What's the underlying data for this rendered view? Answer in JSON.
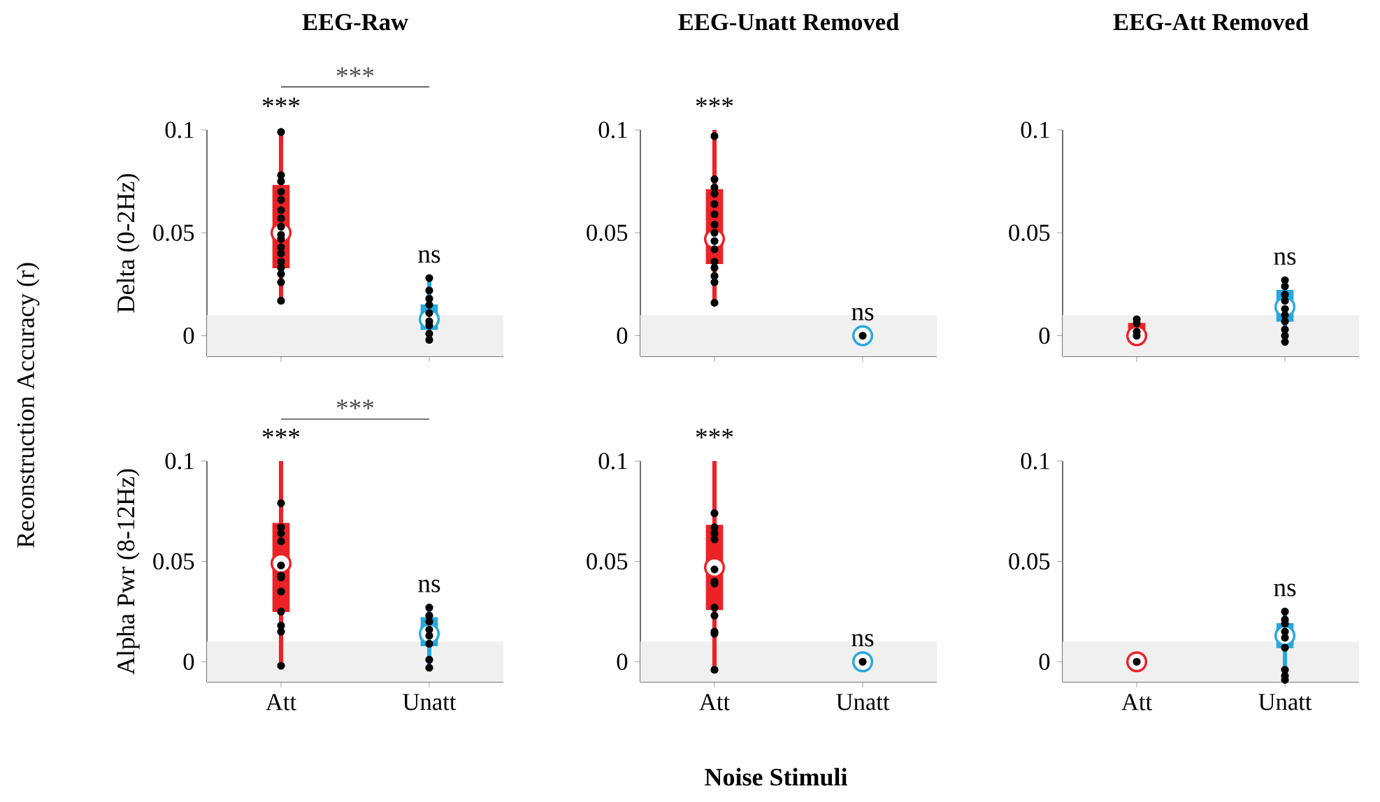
{
  "chart_data": [
    {
      "type": "box",
      "title": "EEG-Raw",
      "ylabel": "Delta (0-2Hz)",
      "categories": [
        "Att",
        "Unatt"
      ],
      "colors": [
        "#ec2227",
        "#27a8e0"
      ],
      "marker": "circle",
      "tick_labels": "y",
      "ylim": [
        -0.01,
        0.1
      ],
      "yticks": [
        0,
        0.05,
        0.1
      ],
      "bands": [
        {
          "axis": "y",
          "from": -0.01,
          "to": 0.01,
          "color": "#f0f0f0"
        }
      ],
      "boxes": [
        {
          "low": 0.017,
          "q1": 0.033,
          "median": 0.05,
          "q3": 0.073,
          "high": 0.099
        },
        {
          "low": -0.002,
          "q1": 0.003,
          "median": 0.008,
          "q3": 0.015,
          "high": 0.028
        }
      ],
      "series": [
        {
          "type": "scatter",
          "color": "#000000",
          "x": [
            "Att",
            "Att",
            "Att",
            "Att",
            "Att",
            "Att",
            "Att",
            "Att",
            "Att",
            "Att",
            "Att",
            "Att",
            "Att",
            "Att",
            "Att",
            "Att",
            "Att",
            "Unatt",
            "Unatt",
            "Unatt",
            "Unatt",
            "Unatt",
            "Unatt",
            "Unatt",
            "Unatt",
            "Unatt"
          ],
          "values": [
            0.099,
            0.078,
            0.075,
            0.07,
            0.066,
            0.061,
            0.057,
            0.053,
            0.049,
            0.047,
            0.043,
            0.04,
            0.036,
            0.033,
            0.03,
            0.026,
            0.017,
            0.028,
            0.022,
            0.018,
            0.015,
            0.011,
            0.007,
            0.005,
            0.001,
            -0.002
          ]
        }
      ],
      "annotations": [
        {
          "text": "***",
          "x": "Att",
          "y": 0.1
        },
        {
          "text": "ns",
          "x": "Unatt",
          "y": 0.028
        },
        "***"
      ]
    },
    {
      "type": "box",
      "title": "EEG-Unatt Removed",
      "categories": [
        "Att",
        "Unatt"
      ],
      "colors": [
        "#ec2227",
        "#27a8e0"
      ],
      "marker": "circle",
      "tick_labels": "y",
      "ylim": [
        -0.01,
        0.1
      ],
      "yticks": [
        0,
        0.05,
        0.1
      ],
      "bands": [
        {
          "axis": "y",
          "from": -0.01,
          "to": 0.01,
          "color": "#f0f0f0"
        }
      ],
      "boxes": [
        {
          "low": 0.016,
          "q1": 0.035,
          "median": 0.047,
          "q3": 0.071,
          "high": 0.1
        },
        {
          "low": 0,
          "q1": 0,
          "median": 0,
          "q3": 0,
          "high": 0
        }
      ],
      "series": [
        {
          "type": "scatter",
          "color": "#000000",
          "x": [
            "Att",
            "Att",
            "Att",
            "Att",
            "Att",
            "Att",
            "Att",
            "Att",
            "Att",
            "Att",
            "Att",
            "Att",
            "Att",
            "Att",
            "Att",
            "Unatt"
          ],
          "values": [
            0.097,
            0.076,
            0.072,
            0.069,
            0.064,
            0.059,
            0.054,
            0.05,
            0.046,
            0.042,
            0.036,
            0.033,
            0.029,
            0.026,
            0.016,
            0
          ]
        }
      ],
      "annotations": [
        {
          "text": "***",
          "x": "Att",
          "y": 0.1
        },
        {
          "text": "ns",
          "x": "Unatt",
          "y": 0
        }
      ]
    },
    {
      "type": "box",
      "title": "EEG-Att Removed",
      "categories": [
        "Att",
        "Unatt"
      ],
      "colors": [
        "#ec2227",
        "#27a8e0"
      ],
      "marker": "circle",
      "tick_labels": "y",
      "ylim": [
        -0.01,
        0.1
      ],
      "yticks": [
        0,
        0.05,
        0.1
      ],
      "bands": [
        {
          "axis": "y",
          "from": -0.01,
          "to": 0.01,
          "color": "#f0f0f0"
        }
      ],
      "boxes": [
        {
          "low": 0,
          "q1": 0,
          "median": 0,
          "q3": 0.006,
          "high": 0.008
        },
        {
          "low": -0.003,
          "q1": 0.007,
          "median": 0.014,
          "q3": 0.022,
          "high": 0.027
        }
      ],
      "series": [
        {
          "type": "scatter",
          "color": "#000000",
          "x": [
            "Att",
            "Att",
            "Att",
            "Att",
            "Unatt",
            "Unatt",
            "Unatt",
            "Unatt",
            "Unatt",
            "Unatt",
            "Unatt",
            "Unatt",
            "Unatt",
            "Unatt"
          ],
          "values": [
            0.008,
            0.006,
            0.002,
            0,
            0.027,
            0.024,
            0.02,
            0.017,
            0.013,
            0.01,
            0.007,
            0.003,
            0,
            -0.003
          ]
        }
      ],
      "annotations": [
        {
          "text": "ns",
          "x": "Unatt",
          "y": 0.027
        }
      ]
    },
    {
      "type": "box",
      "ylabel": "Alpha Pwr (8-12Hz)",
      "categories": [
        "Att",
        "Unatt"
      ],
      "colors": [
        "#ec2227",
        "#27a8e0"
      ],
      "marker": "circle",
      "ylim": [
        -0.01,
        0.1
      ],
      "yticks": [
        0,
        0.05,
        0.1
      ],
      "bands": [
        {
          "axis": "y",
          "from": -0.01,
          "to": 0.01,
          "color": "#f0f0f0"
        }
      ],
      "boxes": [
        {
          "low": -0.002,
          "q1": 0.025,
          "median": 0.049,
          "q3": 0.069,
          "high": 0.1
        },
        {
          "low": -0.003,
          "q1": 0.008,
          "median": 0.014,
          "q3": 0.022,
          "high": 0.027
        }
      ],
      "series": [
        {
          "type": "scatter",
          "color": "#000000",
          "x": [
            "Att",
            "Att",
            "Att",
            "Att",
            "Att",
            "Att",
            "Att",
            "Att",
            "Att",
            "Att",
            "Att",
            "Att",
            "Unatt",
            "Unatt",
            "Unatt",
            "Unatt",
            "Unatt",
            "Unatt",
            "Unatt",
            "Unatt"
          ],
          "values": [
            0.079,
            0.067,
            0.064,
            0.06,
            0.048,
            0.043,
            0.042,
            0.035,
            0.025,
            0.018,
            0.015,
            -0.002,
            0.027,
            0.023,
            0.02,
            0.016,
            0.013,
            0.009,
            0.001,
            -0.003
          ]
        }
      ],
      "annotations": [
        {
          "text": "***",
          "x": "Att",
          "y": 0.1
        },
        {
          "text": "ns",
          "x": "Unatt",
          "y": 0.027
        },
        "***"
      ]
    },
    {
      "type": "box",
      "categories": [
        "Att",
        "Unatt"
      ],
      "colors": [
        "#ec2227",
        "#27a8e0"
      ],
      "marker": "circle",
      "ylim": [
        -0.01,
        0.1
      ],
      "yticks": [
        0,
        0.05,
        0.1
      ],
      "bands": [
        {
          "axis": "y",
          "from": -0.01,
          "to": 0.01,
          "color": "#f0f0f0"
        }
      ],
      "boxes": [
        {
          "low": -0.004,
          "q1": 0.026,
          "median": 0.047,
          "q3": 0.068,
          "high": 0.1
        },
        {
          "low": 0,
          "q1": 0,
          "median": 0,
          "q3": 0,
          "high": 0
        }
      ],
      "series": [
        {
          "type": "scatter",
          "color": "#000000",
          "x": [
            "Att",
            "Att",
            "Att",
            "Att",
            "Att",
            "Att",
            "Att",
            "Att",
            "Att",
            "Att",
            "Att",
            "Att",
            "Unatt"
          ],
          "values": [
            0.074,
            0.067,
            0.064,
            0.061,
            0.046,
            0.04,
            0.039,
            0.027,
            0.023,
            0.015,
            0.014,
            -0.004,
            0
          ]
        }
      ],
      "annotations": [
        {
          "text": "***",
          "x": "Att",
          "y": 0.1
        },
        {
          "text": "ns",
          "x": "Unatt",
          "y": 0
        }
      ]
    },
    {
      "type": "box",
      "categories": [
        "Att",
        "Unatt"
      ],
      "colors": [
        "#ec2227",
        "#27a8e0"
      ],
      "marker": "circle",
      "ylim": [
        -0.01,
        0.1
      ],
      "yticks": [
        0,
        0.05,
        0.1
      ],
      "bands": [
        {
          "axis": "y",
          "from": -0.01,
          "to": 0.01,
          "color": "#f0f0f0"
        }
      ],
      "boxes": [
        {
          "low": 0,
          "q1": 0,
          "median": 0,
          "q3": 0,
          "high": 0
        },
        {
          "low": -0.009,
          "q1": 0.007,
          "median": 0.013,
          "q3": 0.019,
          "high": 0.025
        }
      ],
      "series": [
        {
          "type": "scatter",
          "color": "#000000",
          "x": [
            "Att",
            "Unatt",
            "Unatt",
            "Unatt",
            "Unatt",
            "Unatt",
            "Unatt",
            "Unatt",
            "Unatt",
            "Unatt"
          ],
          "values": [
            0,
            0.025,
            0.021,
            0.019,
            0.015,
            0.012,
            0.007,
            -0.004,
            -0.007,
            -0.009
          ]
        }
      ],
      "annotations": [
        {
          "text": "ns",
          "x": "Unatt",
          "y": 0.025
        }
      ]
    },
    {
      "type": "other",
      "xlabel": "Noise Stimuli",
      "ylabel": "Reconstruction Accuracy (r)"
    }
  ]
}
